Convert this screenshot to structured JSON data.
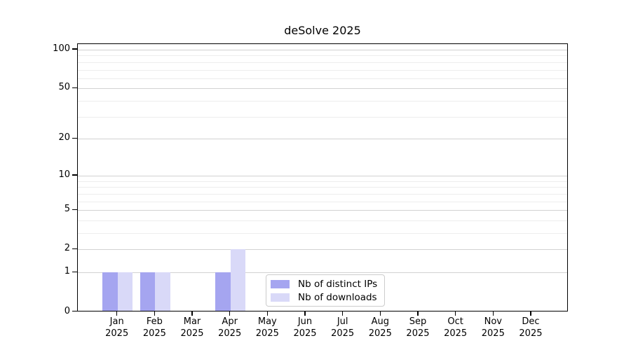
{
  "chart_data": {
    "type": "bar",
    "title": "deSolve 2025",
    "categories": [
      "Jan",
      "Feb",
      "Mar",
      "Apr",
      "May",
      "Jun",
      "Jul",
      "Aug",
      "Sep",
      "Oct",
      "Nov",
      "Dec"
    ],
    "x_sub_label": "2025",
    "series": [
      {
        "name": "Nb of distinct IPs",
        "color": "#a5a5f0",
        "values": [
          1,
          1,
          0,
          1,
          0,
          0,
          0,
          0,
          0,
          0,
          0,
          0
        ]
      },
      {
        "name": "Nb of downloads",
        "color": "#d9d9f8",
        "values": [
          1,
          1,
          0,
          2,
          0,
          0,
          0,
          0,
          0,
          0,
          0,
          0
        ]
      }
    ],
    "y_axis": {
      "scale": "log1p",
      "ticks": [
        0,
        1,
        2,
        5,
        10,
        20,
        50,
        100
      ],
      "minor_ticks": [
        3,
        4,
        6,
        7,
        8,
        9,
        30,
        40,
        60,
        70,
        80,
        90
      ],
      "ylim": [
        0,
        110
      ]
    },
    "legend": {
      "position": "lower center",
      "border_color": "#cccccc"
    },
    "colors": {
      "grid_major": "#d2d2d2",
      "grid_minor": "#ededed",
      "axis": "#000000",
      "text": "#000000",
      "background": "#ffffff"
    }
  }
}
